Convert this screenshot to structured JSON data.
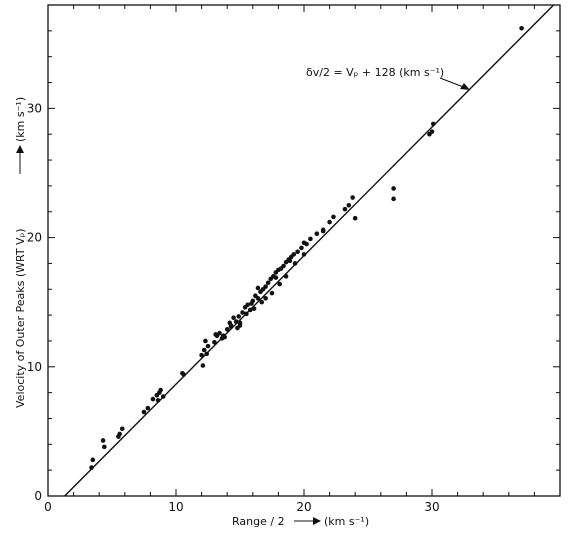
{
  "chart_data": {
    "type": "scatter",
    "title": "",
    "xlabel": "Range / 2",
    "xlabel_unit": "(km s⁻¹)",
    "ylabel": "Velocity of Outer Peaks (WRT Vₚ)",
    "ylabel_unit": "(km s⁻¹)",
    "xlim": [
      0,
      40
    ],
    "ylim": [
      0,
      38
    ],
    "xticks": [
      0,
      10,
      20,
      30
    ],
    "yticks": [
      0,
      10,
      20,
      30
    ],
    "grid": false,
    "annotation": "δv/2 = Vₚ + 128 (km s⁻¹)",
    "fit_line": {
      "x": [
        1.3,
        39.5
      ],
      "y": [
        0,
        38
      ]
    },
    "points": {
      "x": [
        3.5,
        3.4,
        4.3,
        4.4,
        5.6,
        5.8,
        5.5,
        7.5,
        7.8,
        8.2,
        8.5,
        8.7,
        8.8,
        9.0,
        8.6,
        10.5,
        10.6,
        12.0,
        12.2,
        12.4,
        12.1,
        12.5,
        13.0,
        13.2,
        13.4,
        13.6,
        13.8,
        14.0,
        14.2,
        14.3,
        14.5,
        14.7,
        14.9,
        15.0,
        15.2,
        15.4,
        15.0,
        15.6,
        15.8,
        16.0,
        16.2,
        16.4,
        16.6,
        16.8,
        17.0,
        17.2,
        17.4,
        17.6,
        17.8,
        18.0,
        18.2,
        18.4,
        18.6,
        18.8,
        19.0,
        19.2,
        19.5,
        19.8,
        20.0,
        20.2,
        20.5,
        21.0,
        21.5,
        22.0,
        22.3,
        23.2,
        23.5,
        23.8,
        24.0,
        27.0,
        27.0,
        29.8,
        30.0,
        30.1,
        37.0,
        12.3,
        13.1,
        14.3,
        15.5,
        16.1,
        17.0,
        17.5,
        18.1,
        18.6,
        19.3,
        20.0,
        21.5,
        14.8,
        16.7,
        13.7,
        15.9,
        17.8,
        18.9,
        16.4
      ],
      "y": [
        2.8,
        2.2,
        4.3,
        3.8,
        4.8,
        5.2,
        4.6,
        6.5,
        6.8,
        7.5,
        7.8,
        8.0,
        8.2,
        7.7,
        7.4,
        9.5,
        9.4,
        10.9,
        11.3,
        11.0,
        10.1,
        11.6,
        11.9,
        12.4,
        12.6,
        12.2,
        12.3,
        12.9,
        13.4,
        13.1,
        13.8,
        13.5,
        13.9,
        13.4,
        14.2,
        14.6,
        13.2,
        14.8,
        14.4,
        15.1,
        15.5,
        15.3,
        15.8,
        16.0,
        16.2,
        16.5,
        16.8,
        17.0,
        17.3,
        17.5,
        17.6,
        17.8,
        18.1,
        18.3,
        18.5,
        18.7,
        18.9,
        19.2,
        19.6,
        19.5,
        19.9,
        20.3,
        20.5,
        21.2,
        21.6,
        22.2,
        22.5,
        23.1,
        21.5,
        23.8,
        23.0,
        28.0,
        28.2,
        28.8,
        36.2,
        12.0,
        12.5,
        13.2,
        14.1,
        14.5,
        15.3,
        15.7,
        16.4,
        17.0,
        18.0,
        18.7,
        20.6,
        13.0,
        15.0,
        12.4,
        14.9,
        16.9,
        18.2,
        16.1
      ]
    }
  }
}
